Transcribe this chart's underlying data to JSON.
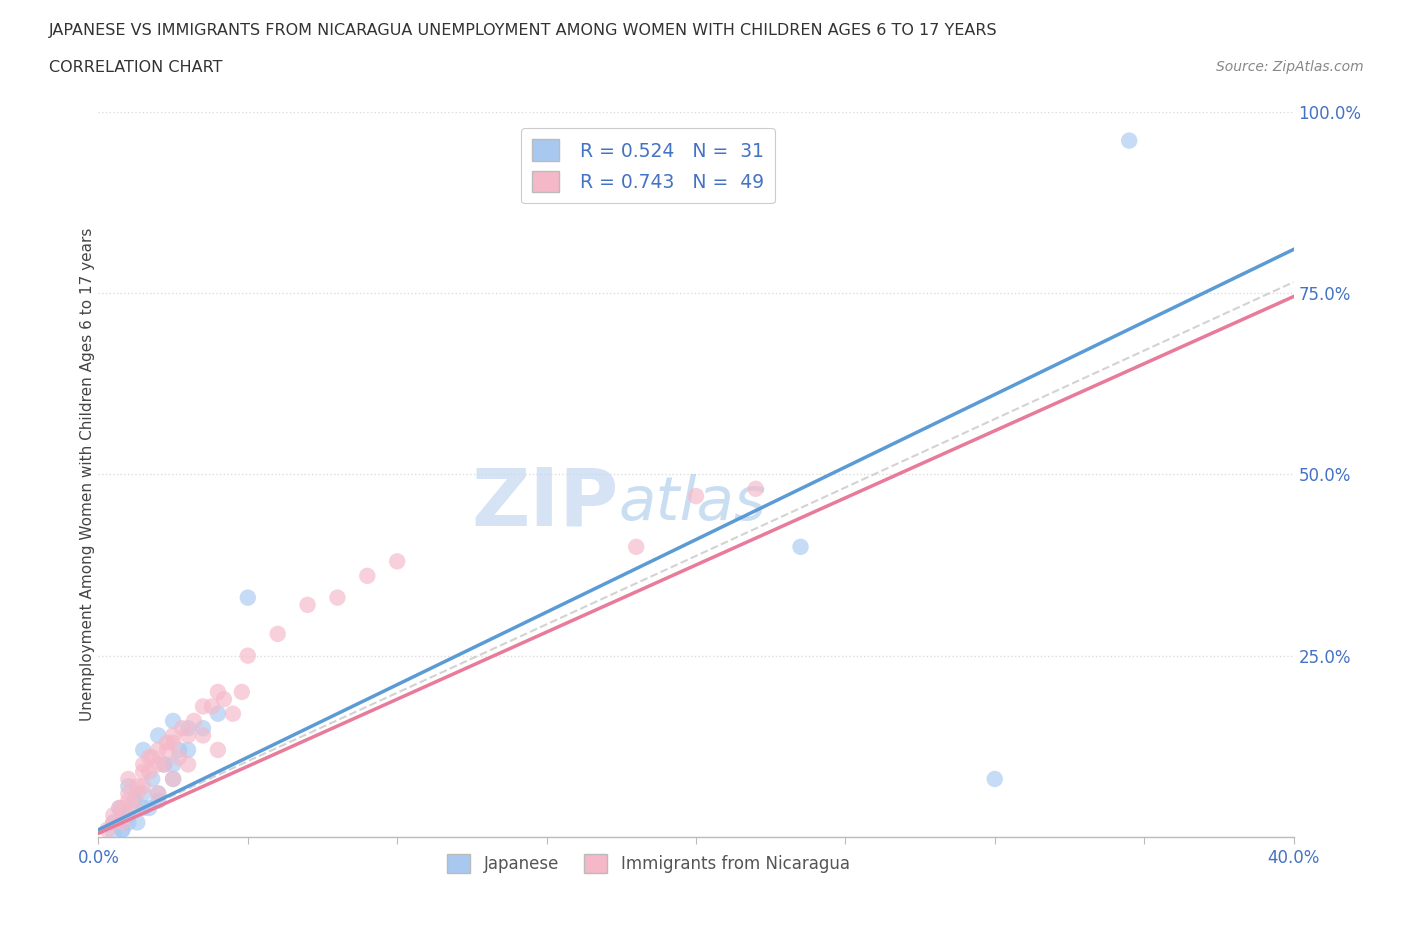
{
  "title_line1": "JAPANESE VS IMMIGRANTS FROM NICARAGUA UNEMPLOYMENT AMONG WOMEN WITH CHILDREN AGES 6 TO 17 YEARS",
  "title_line2": "CORRELATION CHART",
  "source_text": "Source: ZipAtlas.com",
  "watermark_zip": "ZIP",
  "watermark_atlas": "atlas",
  "ylabel": "Unemployment Among Women with Children Ages 6 to 17 years",
  "xlim": [
    0.0,
    0.4
  ],
  "ylim": [
    0.0,
    1.0
  ],
  "ytick_labels": [
    "",
    "25.0%",
    "50.0%",
    "75.0%",
    "100.0%"
  ],
  "xtick_labels_show": [
    "0.0%",
    "40.0%"
  ],
  "legend_r1": "0.524",
  "legend_n1": "31",
  "legend_r2": "0.743",
  "legend_n2": "49",
  "color_japanese": "#a8c8f0",
  "color_nicaragua": "#f5b8c8",
  "color_line_japanese": "#5b9bd5",
  "color_line_nicaragua": "#e87a9a",
  "color_line_dashed": "#c8c8c8",
  "color_text_blue": "#4472c4",
  "color_axis": "#bbbbbb",
  "color_grid": "#dddddd",
  "background_color": "#ffffff",
  "jp_x": [
    0.005,
    0.007,
    0.008,
    0.01,
    0.01,
    0.012,
    0.013,
    0.015,
    0.015,
    0.017,
    0.018,
    0.02,
    0.02,
    0.022,
    0.025,
    0.025,
    0.027,
    0.03,
    0.005,
    0.008,
    0.01,
    0.015,
    0.02,
    0.025,
    0.03,
    0.035,
    0.04,
    0.05,
    0.345,
    0.235,
    0.3
  ],
  "jp_y": [
    0.02,
    0.04,
    0.01,
    0.03,
    0.07,
    0.05,
    0.02,
    0.06,
    0.12,
    0.04,
    0.08,
    0.05,
    0.14,
    0.1,
    0.08,
    0.16,
    0.12,
    0.15,
    0.005,
    0.01,
    0.02,
    0.04,
    0.06,
    0.1,
    0.12,
    0.15,
    0.17,
    0.33,
    0.96,
    0.4,
    0.08
  ],
  "nic_x": [
    0.003,
    0.005,
    0.007,
    0.008,
    0.01,
    0.01,
    0.012,
    0.013,
    0.015,
    0.015,
    0.017,
    0.018,
    0.02,
    0.02,
    0.022,
    0.023,
    0.025,
    0.025,
    0.027,
    0.028,
    0.03,
    0.032,
    0.035,
    0.038,
    0.04,
    0.042,
    0.045,
    0.048,
    0.005,
    0.008,
    0.01,
    0.013,
    0.015,
    0.017,
    0.02,
    0.023,
    0.025,
    0.03,
    0.035,
    0.04,
    0.05,
    0.06,
    0.07,
    0.08,
    0.09,
    0.1,
    0.18,
    0.22,
    0.2
  ],
  "nic_y": [
    0.01,
    0.03,
    0.04,
    0.02,
    0.05,
    0.08,
    0.04,
    0.06,
    0.07,
    0.1,
    0.09,
    0.11,
    0.06,
    0.12,
    0.1,
    0.13,
    0.08,
    0.14,
    0.11,
    0.15,
    0.1,
    0.16,
    0.14,
    0.18,
    0.12,
    0.19,
    0.17,
    0.2,
    0.02,
    0.04,
    0.06,
    0.07,
    0.09,
    0.11,
    0.1,
    0.12,
    0.13,
    0.14,
    0.18,
    0.2,
    0.25,
    0.28,
    0.32,
    0.33,
    0.36,
    0.38,
    0.4,
    0.48,
    0.47
  ],
  "marker_size": 140,
  "marker_alpha": 0.65
}
